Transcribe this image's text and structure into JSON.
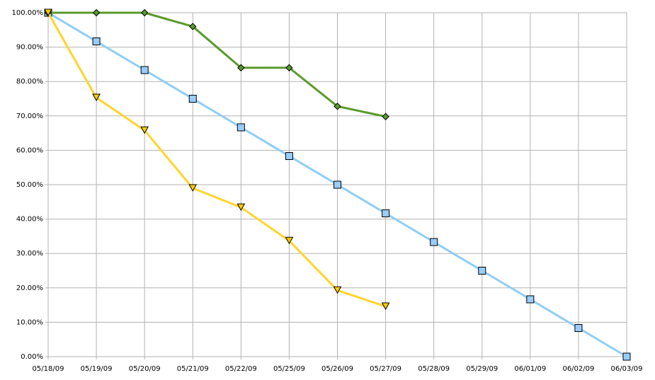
{
  "chart_data": {
    "type": "line",
    "categories": [
      "05/18/09",
      "05/19/09",
      "05/20/09",
      "05/21/09",
      "05/22/09",
      "05/25/09",
      "05/26/09",
      "05/27/09",
      "05/28/09",
      "05/29/09",
      "06/01/09",
      "06/02/09",
      "06/03/09"
    ],
    "series": [
      {
        "color": "#8ecdf5",
        "marker": "square",
        "marker_color": "#99ccff",
        "values": [
          100,
          91.67,
          83.33,
          75,
          66.67,
          58.33,
          50,
          41.67,
          33.33,
          25,
          16.67,
          8.33,
          0
        ]
      },
      {
        "color": "#5a9a2a",
        "marker": "diamond",
        "marker_color": "#5a9a2a",
        "values": [
          100,
          100,
          100,
          96,
          84,
          84,
          72.8,
          69.8,
          null,
          null,
          null,
          null,
          null
        ]
      },
      {
        "color": "#ffd52b",
        "marker": "triangle-down",
        "marker_color": "#ffcc00",
        "values": [
          100,
          75.3,
          65.8,
          49,
          43.4,
          33.7,
          19.3,
          14.6,
          null,
          null,
          null,
          null,
          null
        ]
      }
    ],
    "ylim": [
      0,
      100
    ],
    "yticks": [
      {
        "value": 0,
        "label": "0.00%"
      },
      {
        "value": 10,
        "label": "10.00%"
      },
      {
        "value": 20,
        "label": "20.00%"
      },
      {
        "value": 30,
        "label": "30.00%"
      },
      {
        "value": 40,
        "label": "40.00%"
      },
      {
        "value": 50,
        "label": "50.00%"
      },
      {
        "value": 60,
        "label": "60.00%"
      },
      {
        "value": 70,
        "label": "70.00%"
      },
      {
        "value": 80,
        "label": "80.00%"
      },
      {
        "value": 90,
        "label": "90.00%"
      },
      {
        "value": 100,
        "label": "100.00%"
      }
    ],
    "grid": true
  }
}
